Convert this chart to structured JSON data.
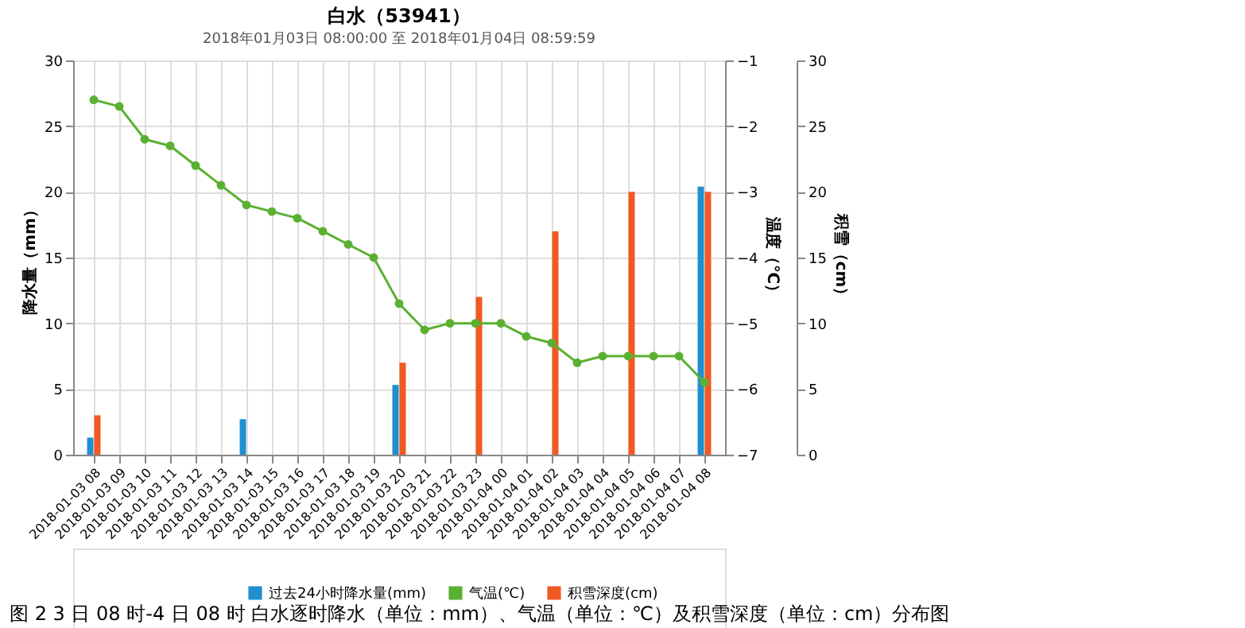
{
  "chart_data": {
    "type": "bar",
    "title": "白水（53941）",
    "subtitle": "2018年01月03日 08:00:00 至 2018年01月04日 08:59:59",
    "categories": [
      "2018-01-03 08",
      "2018-01-03 09",
      "2018-01-03 10",
      "2018-01-03 11",
      "2018-01-03 12",
      "2018-01-03 13",
      "2018-01-03 14",
      "2018-01-03 15",
      "2018-01-03 16",
      "2018-01-03 17",
      "2018-01-03 18",
      "2018-01-03 19",
      "2018-01-03 20",
      "2018-01-03 21",
      "2018-01-03 22",
      "2018-01-03 23",
      "2018-01-04 00",
      "2018-01-04 01",
      "2018-01-04 02",
      "2018-01-04 03",
      "2018-01-04 04",
      "2018-01-04 05",
      "2018-01-04 06",
      "2018-01-04 07",
      "2018-01-04 08"
    ],
    "series": [
      {
        "name": "过去24小时降水量(mm)",
        "axis": "y",
        "color": "#1f8fcf",
        "values": [
          1.3,
          0,
          0,
          0,
          0,
          0,
          2.7,
          0,
          0,
          0,
          0,
          0,
          5.3,
          0,
          0,
          0,
          0,
          0,
          0,
          0,
          0,
          0,
          0,
          0,
          20.4
        ]
      },
      {
        "name": "气温(℃)",
        "type": "line",
        "axis": "y2",
        "color": "#5ab031",
        "marker": "circle",
        "line_style": "solid",
        "values": [
          -1.6,
          -1.7,
          -2.2,
          -2.3,
          -2.6,
          -2.9,
          -3.2,
          -3.3,
          -3.4,
          -3.6,
          -3.8,
          -4.0,
          -4.7,
          -5.1,
          -5.0,
          -5.0,
          -5.0,
          -5.2,
          -5.3,
          -5.6,
          -5.5,
          -5.5,
          -5.5,
          -5.5,
          -5.9
        ]
      },
      {
        "name": "积雪深度(cm)",
        "axis": "y3",
        "color": "#f05a22",
        "values": [
          3,
          0,
          0,
          0,
          0,
          0,
          0,
          0,
          0,
          0,
          0,
          0,
          7,
          0,
          0,
          12,
          0,
          0,
          17,
          0,
          0,
          20,
          0,
          0,
          20
        ]
      }
    ],
    "ylabel": "降水量（mm）",
    "y2label": "温度（℃）",
    "y3label": "积雪（cm）",
    "ylim": [
      0,
      30
    ],
    "yticks": [
      0,
      5,
      10,
      15,
      20,
      25,
      30
    ],
    "y2lim": [
      -7,
      -1
    ],
    "y2ticks": [
      -7,
      -6,
      -5,
      -4,
      -3,
      -2,
      -1
    ],
    "y3lim": [
      0,
      30
    ],
    "y3ticks": [
      0,
      5,
      10,
      15,
      20,
      25,
      30
    ],
    "grid": true,
    "legend": "bottom",
    "annotations": [
      "图 2 3 日 08 时-4 日 08 时 白水逐时降水（单位：mm）、气温（单位：℃）及积雪深度（单位：cm）分布图"
    ]
  }
}
